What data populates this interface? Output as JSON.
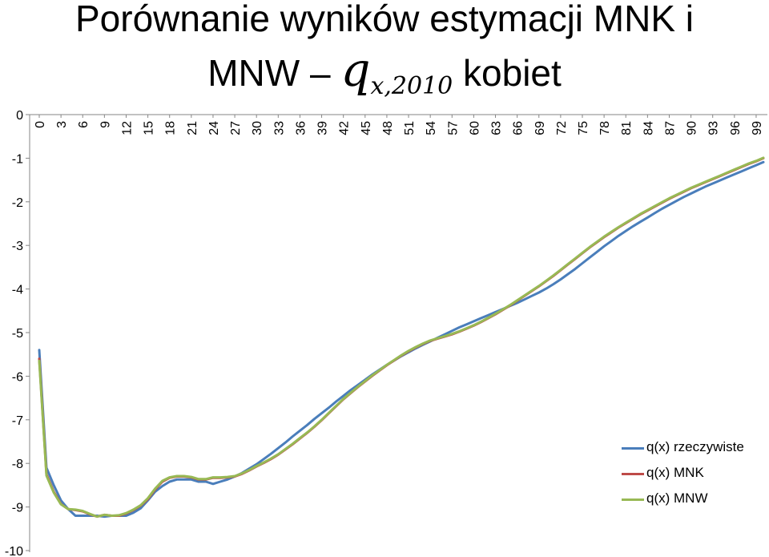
{
  "title": {
    "line1": "Porównanie wyników estymacji MNK i",
    "line2_prefix": "MNW –",
    "math_q": "q",
    "math_sub": "x,2010",
    "line2_suffix": "kobiet"
  },
  "colors": {
    "q_real": "#4a7ebb",
    "q_mnk": "#be4b48",
    "q_mnw": "#98b954",
    "axis": "#868686"
  },
  "chart_data": {
    "type": "line",
    "title": "Porównanie wyników estymacji MNK i MNW – q_{x,2010} kobiet",
    "xlabel": "",
    "ylabel": "",
    "ylim": [
      -10,
      0
    ],
    "yticks": [
      "0",
      "-1",
      "-2",
      "-3",
      "-4",
      "-5",
      "-6",
      "-7",
      "-8",
      "-9",
      "-10"
    ],
    "x_tick_labels": [
      "0",
      "3",
      "6",
      "9",
      "12",
      "15",
      "18",
      "21",
      "24",
      "27",
      "30",
      "33",
      "36",
      "39",
      "42",
      "45",
      "48",
      "51",
      "54",
      "57",
      "60",
      "63",
      "66",
      "69",
      "72",
      "75",
      "78",
      "81",
      "84",
      "87",
      "90",
      "93",
      "96",
      "99"
    ],
    "x_axis_position": "top",
    "legend_position": "bottom-right",
    "grid": false,
    "x": [
      0,
      1,
      2,
      3,
      4,
      5,
      6,
      7,
      8,
      9,
      10,
      11,
      12,
      13,
      14,
      15,
      16,
      17,
      18,
      19,
      20,
      21,
      22,
      23,
      24,
      25,
      26,
      27,
      28,
      29,
      30,
      31,
      32,
      33,
      34,
      35,
      36,
      37,
      38,
      39,
      40,
      41,
      42,
      43,
      44,
      45,
      46,
      47,
      48,
      49,
      50,
      51,
      52,
      53,
      54,
      55,
      56,
      57,
      58,
      59,
      60,
      61,
      62,
      63,
      64,
      65,
      66,
      67,
      68,
      69,
      70,
      71,
      72,
      73,
      74,
      75,
      76,
      77,
      78,
      79,
      80,
      81,
      82,
      83,
      84,
      85,
      86,
      87,
      88,
      89,
      90,
      91,
      92,
      93,
      94,
      95,
      96,
      97,
      98,
      99,
      100
    ],
    "series": [
      {
        "name": "q(x) rzeczywiste",
        "values": [
          -5.4,
          -8.1,
          -8.5,
          -8.85,
          -9.05,
          -9.2,
          -9.2,
          -9.2,
          -9.2,
          -9.22,
          -9.2,
          -9.2,
          -9.2,
          -9.13,
          -9.03,
          -8.85,
          -8.65,
          -8.52,
          -8.42,
          -8.37,
          -8.37,
          -8.37,
          -8.42,
          -8.42,
          -8.47,
          -8.42,
          -8.37,
          -8.3,
          -8.22,
          -8.12,
          -8.02,
          -7.9,
          -7.78,
          -7.65,
          -7.52,
          -7.38,
          -7.25,
          -7.12,
          -6.98,
          -6.85,
          -6.72,
          -6.58,
          -6.45,
          -6.32,
          -6.2,
          -6.08,
          -5.96,
          -5.85,
          -5.74,
          -5.64,
          -5.54,
          -5.45,
          -5.36,
          -5.28,
          -5.2,
          -5.12,
          -5.04,
          -4.96,
          -4.88,
          -4.81,
          -4.74,
          -4.67,
          -4.6,
          -4.53,
          -4.46,
          -4.39,
          -4.32,
          -4.24,
          -4.16,
          -4.08,
          -3.99,
          -3.89,
          -3.78,
          -3.66,
          -3.54,
          -3.41,
          -3.28,
          -3.15,
          -3.02,
          -2.9,
          -2.78,
          -2.67,
          -2.56,
          -2.46,
          -2.36,
          -2.26,
          -2.16,
          -2.07,
          -1.98,
          -1.89,
          -1.81,
          -1.73,
          -1.65,
          -1.58,
          -1.51,
          -1.44,
          -1.37,
          -1.3,
          -1.23,
          -1.16,
          -1.09
        ]
      },
      {
        "name": "q(x) MNK",
        "values": [
          -5.6,
          -8.25,
          -8.65,
          -8.93,
          -9.05,
          -9.07,
          -9.1,
          -9.17,
          -9.22,
          -9.18,
          -9.2,
          -9.2,
          -9.15,
          -9.07,
          -8.97,
          -8.82,
          -8.6,
          -8.42,
          -8.33,
          -8.3,
          -8.3,
          -8.32,
          -8.37,
          -8.37,
          -8.33,
          -8.33,
          -8.32,
          -8.3,
          -8.24,
          -8.16,
          -8.07,
          -7.99,
          -7.9,
          -7.8,
          -7.68,
          -7.56,
          -7.43,
          -7.3,
          -7.16,
          -7.01,
          -6.85,
          -6.69,
          -6.53,
          -6.39,
          -6.25,
          -6.12,
          -5.99,
          -5.87,
          -5.75,
          -5.64,
          -5.53,
          -5.43,
          -5.34,
          -5.26,
          -5.19,
          -5.14,
          -5.09,
          -5.04,
          -4.98,
          -4.91,
          -4.84,
          -4.76,
          -4.67,
          -4.58,
          -4.48,
          -4.38,
          -4.27,
          -4.16,
          -4.05,
          -3.94,
          -3.82,
          -3.7,
          -3.57,
          -3.44,
          -3.31,
          -3.18,
          -3.05,
          -2.93,
          -2.81,
          -2.7,
          -2.59,
          -2.49,
          -2.39,
          -2.29,
          -2.2,
          -2.11,
          -2.02,
          -1.93,
          -1.85,
          -1.77,
          -1.69,
          -1.62,
          -1.55,
          -1.48,
          -1.41,
          -1.34,
          -1.27,
          -1.2,
          -1.13,
          -1.07,
          -1.0
        ]
      },
      {
        "name": "q(x) MNW",
        "values": [
          -5.65,
          -8.28,
          -8.67,
          -8.94,
          -9.05,
          -9.06,
          -9.09,
          -9.16,
          -9.22,
          -9.18,
          -9.2,
          -9.19,
          -9.14,
          -9.06,
          -8.96,
          -8.8,
          -8.58,
          -8.4,
          -8.32,
          -8.29,
          -8.29,
          -8.31,
          -8.36,
          -8.36,
          -8.32,
          -8.32,
          -8.31,
          -8.29,
          -8.23,
          -8.15,
          -8.06,
          -7.98,
          -7.89,
          -7.79,
          -7.67,
          -7.55,
          -7.42,
          -7.29,
          -7.15,
          -7.0,
          -6.84,
          -6.68,
          -6.52,
          -6.38,
          -6.24,
          -6.11,
          -5.98,
          -5.86,
          -5.74,
          -5.63,
          -5.52,
          -5.42,
          -5.33,
          -5.25,
          -5.18,
          -5.13,
          -5.08,
          -5.03,
          -4.97,
          -4.9,
          -4.83,
          -4.75,
          -4.66,
          -4.57,
          -4.47,
          -4.37,
          -4.26,
          -4.15,
          -4.04,
          -3.93,
          -3.81,
          -3.69,
          -3.56,
          -3.43,
          -3.3,
          -3.17,
          -3.04,
          -2.92,
          -2.8,
          -2.69,
          -2.58,
          -2.48,
          -2.38,
          -2.28,
          -2.19,
          -2.1,
          -2.01,
          -1.92,
          -1.84,
          -1.76,
          -1.68,
          -1.61,
          -1.54,
          -1.47,
          -1.4,
          -1.33,
          -1.26,
          -1.19,
          -1.12,
          -1.06,
          -0.99
        ]
      }
    ]
  }
}
